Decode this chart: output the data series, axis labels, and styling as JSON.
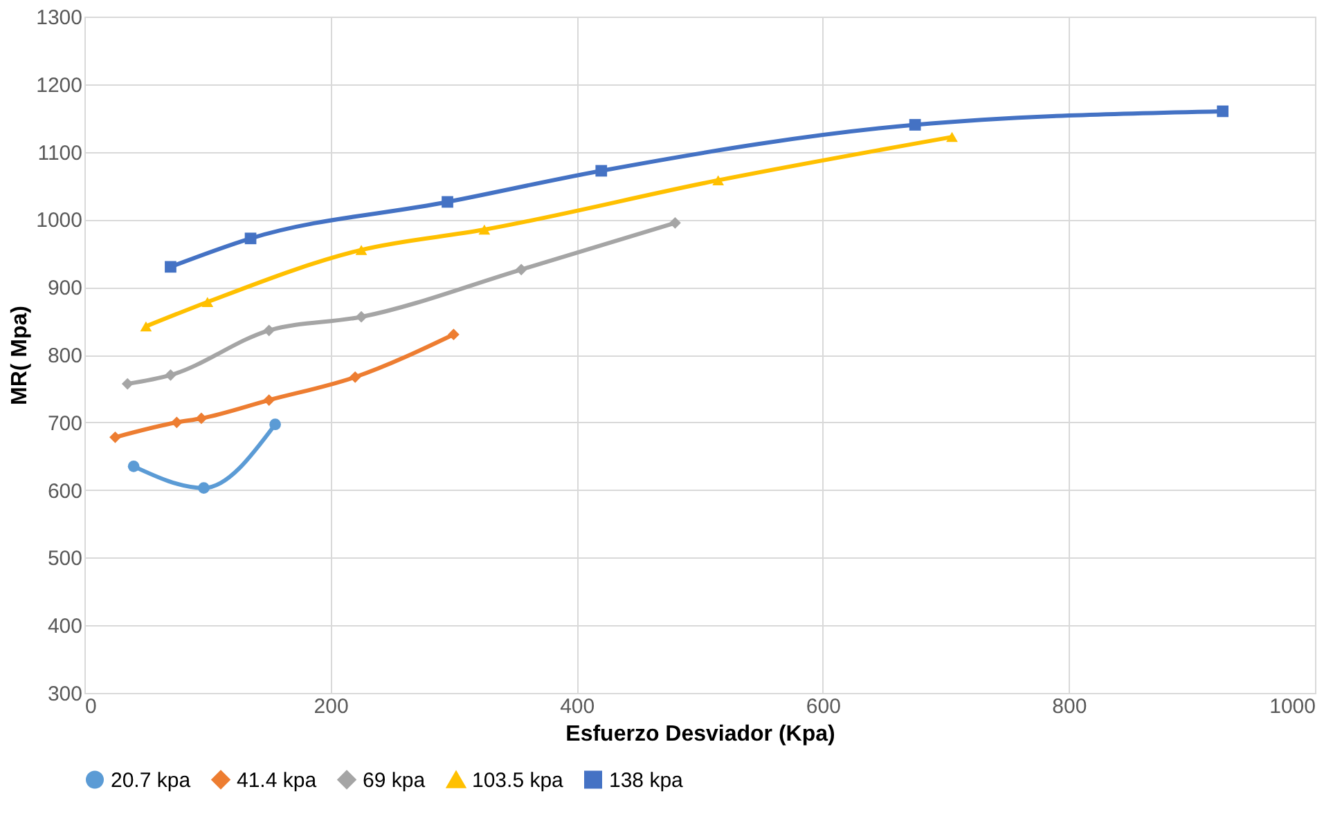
{
  "chart_data": {
    "type": "line",
    "xlabel": "Esfuerzo Desviador (Kpa)",
    "ylabel": "MR( Mpa)",
    "xlim": [
      0,
      1000
    ],
    "xticks": [
      0,
      200,
      400,
      600,
      800,
      1000
    ],
    "ylim": [
      300,
      1300
    ],
    "yticks": [
      300,
      400,
      500,
      600,
      700,
      800,
      900,
      1000,
      1100,
      1200,
      1300
    ],
    "grid": true,
    "legend": "bottom",
    "line_style": "solid",
    "series": [
      {
        "name": "20.7 kpa",
        "color": "#5b9bd5",
        "marker": "circle",
        "x": [
          40,
          97,
          155
        ],
        "values": [
          635,
          603,
          697
        ]
      },
      {
        "name": "41.4 kpa",
        "color": "#ed7d31",
        "marker": "diamond",
        "x": [
          25,
          75,
          95,
          150,
          220,
          300
        ],
        "values": [
          678,
          700,
          706,
          733,
          767,
          830
        ]
      },
      {
        "name": "69 kpa",
        "color": "#a5a5a5",
        "marker": "diamond",
        "x": [
          35,
          70,
          150,
          225,
          355,
          480
        ],
        "values": [
          757,
          770,
          836,
          856,
          926,
          995
        ]
      },
      {
        "name": "103.5 kpa",
        "color": "#ffc000",
        "marker": "triangle",
        "x": [
          50,
          100,
          225,
          325,
          515,
          705
        ],
        "values": [
          842,
          878,
          955,
          985,
          1058,
          1122
        ]
      },
      {
        "name": "138 kpa",
        "color": "#4472c4",
        "marker": "square",
        "x": [
          70,
          135,
          295,
          420,
          675,
          925
        ],
        "values": [
          930,
          972,
          1026,
          1072,
          1140,
          1160
        ]
      }
    ]
  }
}
